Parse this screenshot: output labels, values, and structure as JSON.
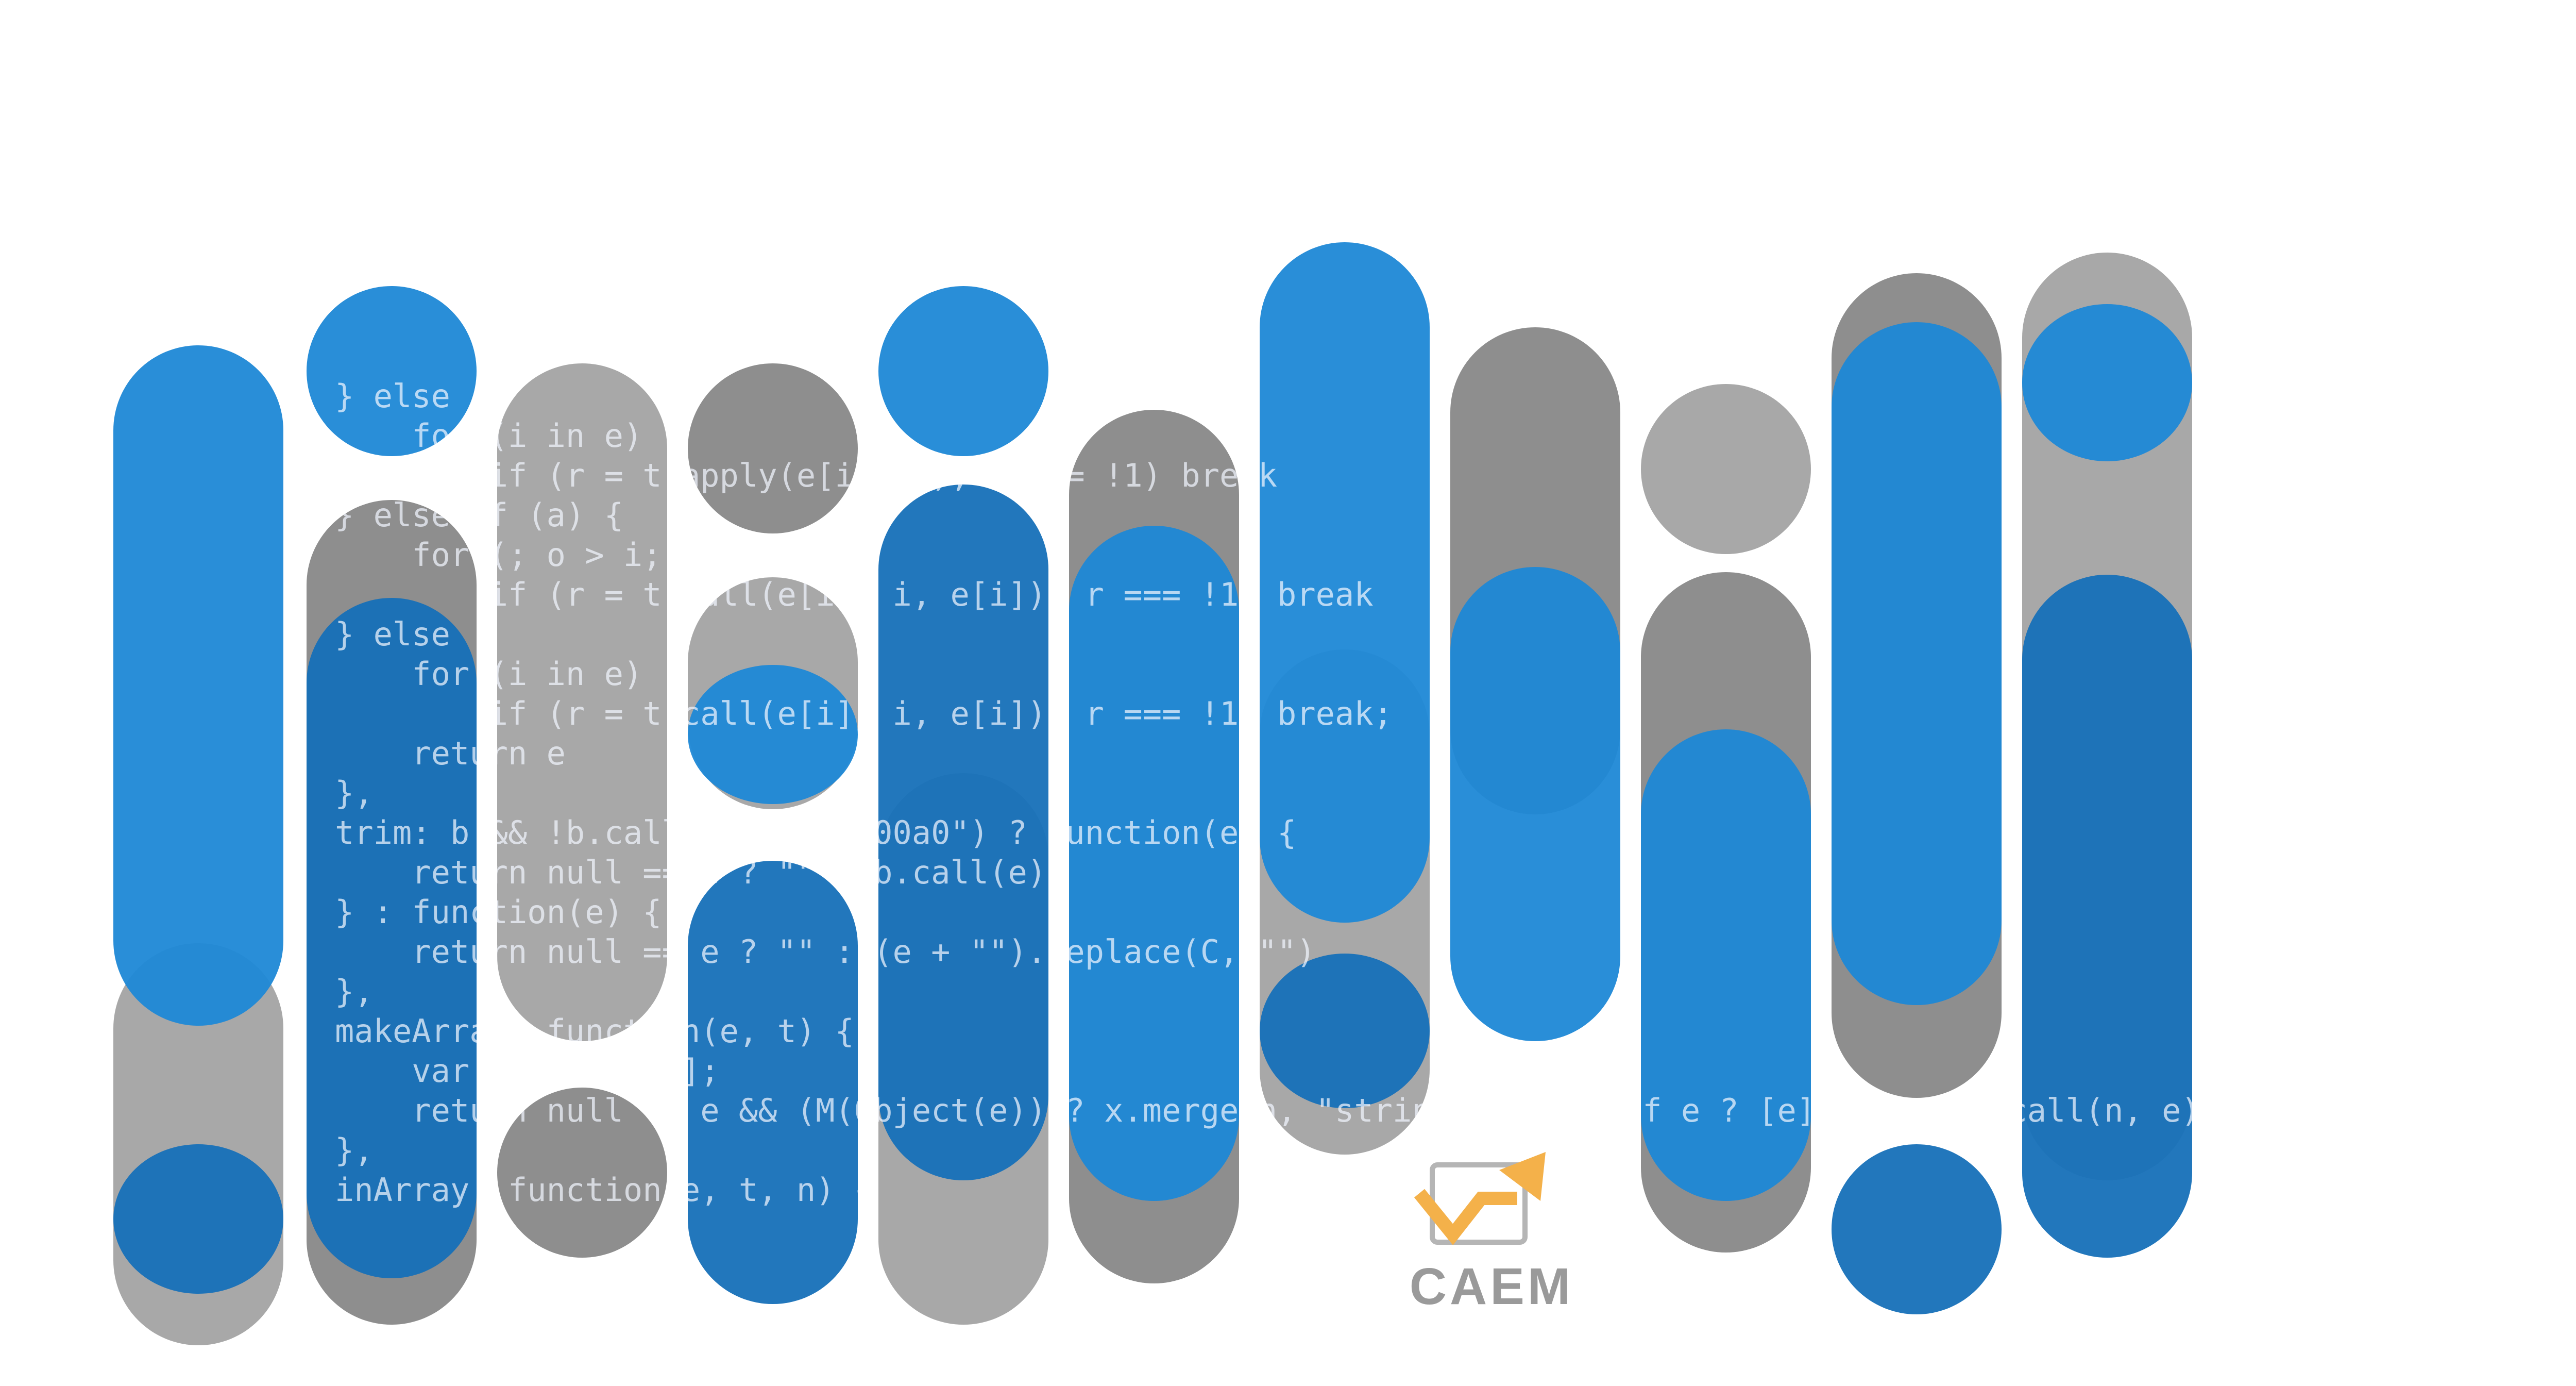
{
  "colors": {
    "background": "#ffffff",
    "blue": "#1e88d6",
    "blue_dark": "#1670b8",
    "gray": "#8e8e8e",
    "gray_light": "#a8a8a8",
    "code_text": "#f2f6ff",
    "logo_orange": "#f4b14a",
    "logo_gray": "#9a9a9a"
  },
  "code_lines": [
    "} else",
    "    for (i in e)",
    "        if (r = t.apply(e[i], n), r === !1) break",
    "} else if (a) {",
    "    for (; o > i; i++)",
    "        if (r = t.call(e[i], i, e[i]), r === !1) break",
    "} else",
    "    for (i in e)",
    "        if (r = t.call(e[i], i, e[i]), r === !1) break;",
    "    return e",
    "},",
    "trim: b && !b.call(\"\\ufeff\\u00a0\") ? function(e) {",
    "    return null == e ? \"\" : b.call(e)",
    "} : function(e) {",
    "    return null == e ? \"\" : (e + \"\").replace(C, \"\")",
    "},",
    "makeArray: function(e, t) {",
    "    var n = t || [];",
    "    return null != e && (M(Object(e)) ? x.merge(n, \"string\" == typeof e ? [e] : e) : h.call(n, e)), n",
    "},",
    "inArray: function(e, t, n) {"
  ],
  "logo": {
    "text": "CAEM",
    "mark": "chart-arrow-icon"
  }
}
